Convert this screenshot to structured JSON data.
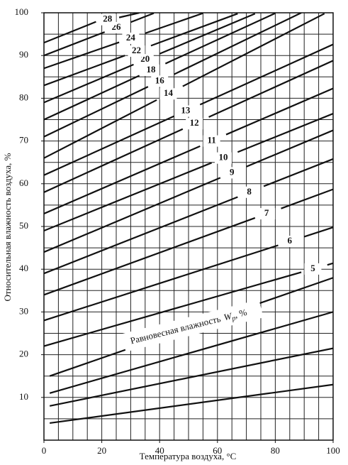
{
  "chart_data": {
    "type": "line",
    "x_label": "Температура воздуха, °С",
    "y_label": "Относительная влажность воздуха, %",
    "annotation": {
      "text": "Равновесная влажность",
      "symbol": "W",
      "subscript": "p",
      "unit": ", %"
    },
    "xlim": [
      0,
      100
    ],
    "ylim": [
      0,
      100
    ],
    "xticks": [
      0,
      20,
      40,
      60,
      80,
      100
    ],
    "yticks": [
      10,
      20,
      30,
      40,
      50,
      60,
      70,
      80,
      90,
      100
    ],
    "grid": true,
    "grid_step": 5,
    "color": "#111111",
    "series": [
      {
        "x": [
          2,
          100
        ],
        "values": [
          4,
          13
        ]
      },
      {
        "x": [
          2,
          100
        ],
        "values": [
          8,
          21.5
        ]
      },
      {
        "x": [
          2,
          100
        ],
        "values": [
          11,
          30
        ]
      },
      {
        "x": [
          2,
          100
        ],
        "values": [
          15,
          38
        ]
      },
      {
        "name": "5",
        "x": [
          0,
          89,
          93,
          98,
          100
        ],
        "values": [
          22,
          39.3,
          null,
          41,
          41.4
        ]
      },
      {
        "name": "6",
        "x": [
          0,
          81,
          85,
          90,
          100
        ],
        "values": [
          28,
          45.6,
          null,
          47.6,
          49.8
        ]
      },
      {
        "name": "7",
        "x": [
          0,
          73,
          77,
          82,
          100
        ],
        "values": [
          34,
          52,
          null,
          54.2,
          58.7
        ]
      },
      {
        "name": "8",
        "x": [
          0,
          67,
          71,
          76,
          100
        ],
        "values": [
          39,
          56.9,
          null,
          59.4,
          65.8
        ]
      },
      {
        "name": "9",
        "x": [
          0,
          61,
          65,
          70,
          100
        ],
        "values": [
          44,
          61.4,
          null,
          64,
          72.5
        ]
      },
      {
        "name": "10",
        "x": [
          0,
          58,
          62,
          67,
          100
        ],
        "values": [
          49,
          64.9,
          null,
          67.4,
          76.4
        ]
      },
      {
        "name": "11",
        "x": [
          0,
          54,
          58,
          63,
          100
        ],
        "values": [
          53,
          68.8,
          null,
          71.5,
          82.3
        ]
      },
      {
        "name": "12",
        "x": [
          0,
          48,
          52,
          57,
          100
        ],
        "values": [
          58,
          72.8,
          null,
          75.6,
          88.8
        ]
      },
      {
        "name": "13",
        "x": [
          0,
          45,
          49,
          54,
          100
        ],
        "values": [
          62,
          75.8,
          null,
          78.5,
          92.6
        ]
      },
      {
        "name": "14",
        "x": [
          0,
          39,
          43,
          48,
          97
        ],
        "values": [
          66,
          79.6,
          null,
          82.8,
          99.8
        ]
      },
      {
        "name": "16",
        "x": [
          0,
          36,
          40,
          45,
          89
        ],
        "values": [
          71,
          82.7,
          null,
          85.6,
          100
        ]
      },
      {
        "name": "18",
        "x": [
          0,
          33,
          37,
          42,
          80
        ],
        "values": [
          75,
          85.3,
          null,
          88.1,
          99.9
        ]
      },
      {
        "name": "20",
        "x": [
          0,
          31,
          35,
          40,
          73
        ],
        "values": [
          79,
          87.9,
          null,
          90.4,
          99.8
        ]
      },
      {
        "name": "22",
        "x": [
          0,
          28,
          32,
          37,
          67
        ],
        "values": [
          83,
          90,
          null,
          92.3,
          99.8
        ]
      },
      {
        "name": "24",
        "x": [
          0,
          26,
          30,
          35,
          55
        ],
        "values": [
          87,
          93.1,
          null,
          95.2,
          99.9
        ]
      },
      {
        "name": "26",
        "x": [
          0,
          21,
          25,
          30,
          38
        ],
        "values": [
          90,
          95.5,
          null,
          97.8,
          99.9
        ]
      },
      {
        "name": "28",
        "x": [
          0,
          18,
          22,
          26,
          33
        ],
        "values": [
          93,
          97.9,
          null,
          98.9,
          100
        ]
      }
    ]
  }
}
